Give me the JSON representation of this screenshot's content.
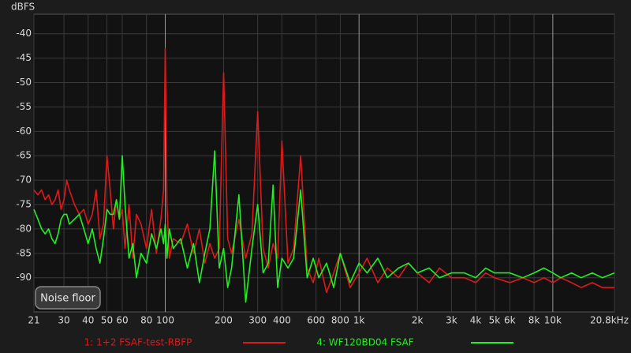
{
  "chart_data": {
    "type": "line",
    "y_label": "dBFS",
    "xscale": "log",
    "grid": true,
    "button_label": "Noise floor",
    "xlim": [
      21,
      20800
    ],
    "ylim": [
      -97,
      -36
    ],
    "xticks": [
      21,
      30,
      40,
      50,
      60,
      80,
      100,
      200,
      300,
      400,
      600,
      800,
      {
        "value": 1000,
        "label": "1k"
      },
      {
        "value": 2000,
        "label": "2k"
      },
      {
        "value": 3000,
        "label": "3k"
      },
      {
        "value": 4000,
        "label": "4k"
      },
      {
        "value": 5000,
        "label": "5k"
      },
      {
        "value": 6000,
        "label": "6k"
      },
      {
        "value": 8000,
        "label": "8k"
      },
      {
        "value": 10000,
        "label": "10k"
      },
      {
        "value": 20800,
        "label": "20.8kHz"
      }
    ],
    "yticks": [
      -40,
      -45,
      -50,
      -55,
      -60,
      -65,
      -70,
      -75,
      -80,
      -85,
      -90
    ],
    "series": [
      {
        "name": "1: 1+2 FSAF-test-RBFP",
        "color": "#dd1a1a",
        "x": [
          21,
          22,
          23,
          24,
          25,
          26,
          27,
          28,
          29,
          30,
          31,
          32,
          34,
          36,
          38,
          40,
          42,
          44,
          46,
          48,
          50,
          52,
          54,
          56,
          58,
          60,
          62,
          65,
          68,
          71,
          75,
          80,
          85,
          90,
          95,
          98,
          100,
          102,
          105,
          110,
          120,
          130,
          140,
          150,
          160,
          170,
          180,
          190,
          200,
          210,
          220,
          240,
          260,
          280,
          300,
          320,
          340,
          360,
          380,
          400,
          430,
          460,
          500,
          540,
          580,
          620,
          680,
          740,
          800,
          900,
          1000,
          1100,
          1250,
          1400,
          1600,
          1800,
          2000,
          2300,
          2600,
          3000,
          3500,
          4000,
          4500,
          5000,
          6000,
          7000,
          8000,
          9000,
          10000,
          11000,
          12500,
          14000,
          16000,
          18000,
          20800
        ],
        "values": [
          -72,
          -73,
          -72,
          -74,
          -73,
          -75,
          -74,
          -72,
          -76,
          -74,
          -70,
          -72,
          -75,
          -77,
          -76,
          -79,
          -77,
          -72,
          -82,
          -79,
          -65,
          -72,
          -80,
          -74,
          -78,
          -76,
          -84,
          -75,
          -86,
          -77,
          -79,
          -84,
          -76,
          -85,
          -78,
          -72,
          -43,
          -75,
          -86,
          -82,
          -83,
          -79,
          -85,
          -80,
          -87,
          -83,
          -86,
          -84,
          -48,
          -82,
          -85,
          -78,
          -86,
          -81,
          -56,
          -84,
          -88,
          -83,
          -86,
          -62,
          -87,
          -84,
          -65,
          -88,
          -91,
          -86,
          -93,
          -89,
          -85,
          -92,
          -89,
          -86,
          -91,
          -88,
          -90,
          -87,
          -89,
          -91,
          -88,
          -90,
          -90,
          -91,
          -89,
          -90,
          -91,
          -90,
          -91,
          -90,
          -91,
          -90,
          -91,
          -92,
          -91,
          -92,
          -92
        ]
      },
      {
        "name": "4: WF120BD04 FSAF",
        "color": "#22f022",
        "x": [
          21,
          22,
          23,
          24,
          25,
          26,
          27,
          28,
          29,
          30,
          31,
          32,
          34,
          36,
          38,
          40,
          42,
          44,
          46,
          48,
          50,
          52,
          54,
          56,
          58,
          60,
          62,
          65,
          68,
          71,
          75,
          80,
          85,
          90,
          95,
          98,
          100,
          102,
          105,
          110,
          120,
          130,
          140,
          150,
          160,
          170,
          180,
          190,
          200,
          210,
          220,
          240,
          260,
          280,
          300,
          320,
          340,
          360,
          380,
          400,
          430,
          460,
          500,
          540,
          580,
          620,
          680,
          740,
          800,
          900,
          1000,
          1100,
          1250,
          1400,
          1600,
          1800,
          2000,
          2300,
          2600,
          3000,
          3500,
          4000,
          4500,
          5000,
          6000,
          7000,
          8000,
          9000,
          10000,
          11000,
          12500,
          14000,
          16000,
          18000,
          20800
        ],
        "values": [
          -76,
          -78,
          -80,
          -81,
          -80,
          -82,
          -83,
          -81,
          -78,
          -77,
          -77,
          -79,
          -78,
          -77,
          -80,
          -83,
          -80,
          -84,
          -87,
          -82,
          -76,
          -77,
          -77,
          -74,
          -78,
          -65,
          -75,
          -86,
          -83,
          -90,
          -85,
          -87,
          -81,
          -84,
          -80,
          -83,
          -79,
          -86,
          -80,
          -84,
          -82,
          -88,
          -83,
          -91,
          -85,
          -80,
          -64,
          -88,
          -84,
          -92,
          -88,
          -73,
          -95,
          -84,
          -75,
          -89,
          -87,
          -71,
          -92,
          -86,
          -88,
          -86,
          -72,
          -90,
          -86,
          -90,
          -87,
          -92,
          -85,
          -91,
          -87,
          -89,
          -86,
          -90,
          -88,
          -87,
          -89,
          -88,
          -90,
          -89,
          -89,
          -90,
          -88,
          -89,
          -89,
          -90,
          -89,
          -88,
          -89,
          -90,
          -89,
          -90,
          -89,
          -90,
          -89
        ]
      }
    ]
  }
}
